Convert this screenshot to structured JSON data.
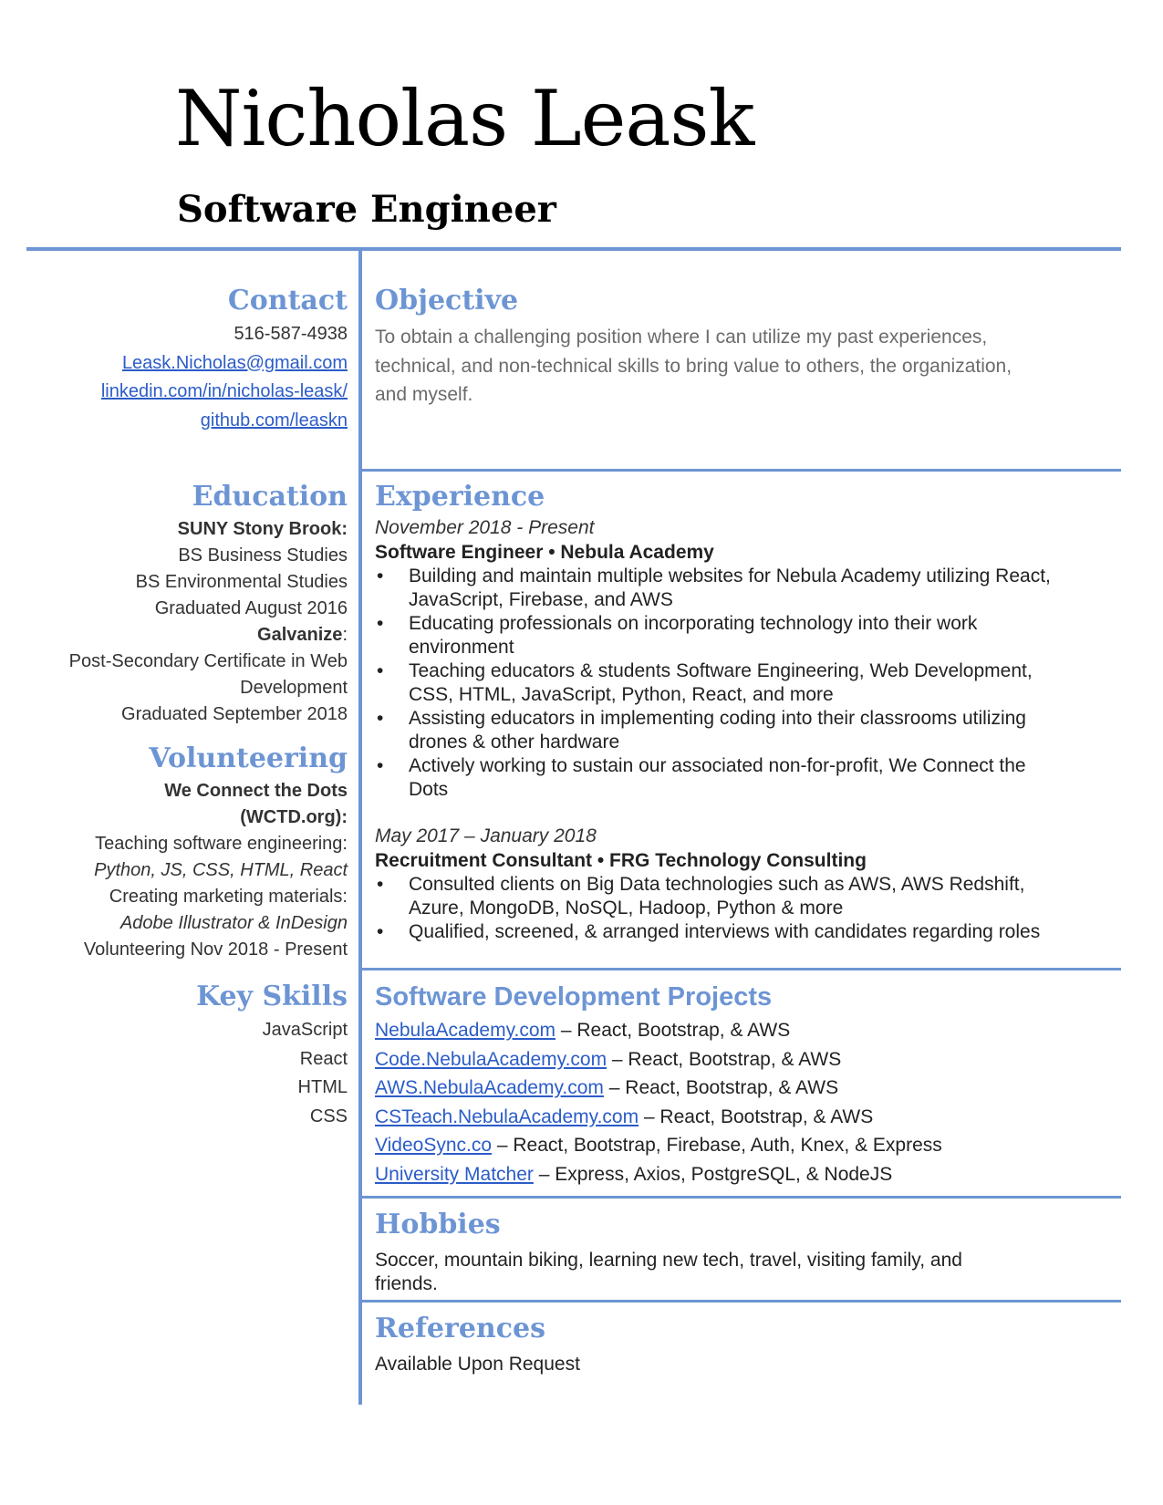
{
  "header": {
    "name": "Nicholas Leask",
    "title": "Software Engineer"
  },
  "contact": {
    "heading": "Contact",
    "phone": "516-587-4938",
    "email": "Leask.Nicholas@gmail.com",
    "linkedin": "linkedin.com/in/nicholas-leask/",
    "github": "github.com/leaskn"
  },
  "education": {
    "heading": "Education",
    "school1": "SUNY Stony Brook:",
    "degree1": "BS Business Studies",
    "degree2": "BS Environmental Studies",
    "grad1": "Graduated August 2016",
    "school2": "Galvanize",
    "school2_suffix": ":",
    "cert_line1": "Post-Secondary Certificate in Web",
    "cert_line2": "Development",
    "grad2": "Graduated September 2018"
  },
  "volunteering": {
    "heading": "Volunteering",
    "org_line1": "We Connect the Dots",
    "org_line2": "(WCTD.org):",
    "line1": "Teaching software engineering:",
    "line2": "Python, JS, CSS, HTML, React",
    "line3": "Creating marketing materials:",
    "line4": "Adobe Illustrator & InDesign",
    "line5": "Volunteering Nov 2018 - Present"
  },
  "skills": {
    "heading": "Key Skills",
    "items": [
      "JavaScript",
      "React",
      "HTML",
      "CSS"
    ]
  },
  "objective": {
    "heading": "Objective",
    "line1": "To obtain a challenging position where I can utilize my past experiences,",
    "line2": "technical, and non-technical skills to bring value to others, the organization,",
    "line3": "and myself."
  },
  "experience": {
    "heading": "Experience",
    "jobs": [
      {
        "dates": "November 2018 - Present",
        "role": "Software Engineer • Nebula Academy",
        "bullets": [
          {
            "l1": "Building and maintain multiple websites for Nebula Academy utilizing React,",
            "l2": "JavaScript, Firebase, and AWS"
          },
          {
            "l1": "Educating professionals on incorporating technology into their work",
            "l2": "environment"
          },
          {
            "l1": "Teaching educators & students Software Engineering, Web Development,",
            "l2": "CSS, HTML, JavaScript, Python, React, and more"
          },
          {
            "l1": "Assisting educators in implementing coding into their classrooms utilizing",
            "l2": "drones & other hardware"
          },
          {
            "l1": "Actively working to sustain our associated non-for-profit, We Connect the",
            "l2": "Dots"
          }
        ]
      },
      {
        "dates": "May 2017 – January 2018",
        "role": "Recruitment Consultant • FRG Technology Consulting",
        "bullets": [
          {
            "l1": "Consulted clients on Big Data technologies such as AWS, AWS Redshift,",
            "l2": "Azure, MongoDB, NoSQL, Hadoop, Python & more"
          },
          {
            "l1": "Qualified, screened, & arranged interviews with candidates regarding roles",
            "l2": ""
          }
        ]
      }
    ]
  },
  "projects": {
    "heading": "Software Development Projects",
    "items": [
      {
        "link": "NebulaAcademy.com",
        "desc": " – React, Bootstrap, & AWS"
      },
      {
        "link": "Code.NebulaAcademy.com",
        "desc": " – React, Bootstrap, & AWS"
      },
      {
        "link": "AWS.NebulaAcademy.com",
        "desc": " – React, Bootstrap, & AWS"
      },
      {
        "link": "CSTeach.NebulaAcademy.com",
        "desc": " – React, Bootstrap, & AWS"
      },
      {
        "link": "VideoSync.co",
        "desc": " – React, Bootstrap, Firebase, Auth, Knex, & Express"
      },
      {
        "link": "University Matcher",
        "desc": " – Express, Axios, PostgreSQL, & NodeJS"
      }
    ]
  },
  "hobbies": {
    "heading": "Hobbies",
    "line1": "Soccer, mountain biking, learning new tech, travel, visiting family, and",
    "line2": "friends."
  },
  "references": {
    "heading": "References",
    "text": "Available Upon Request"
  }
}
